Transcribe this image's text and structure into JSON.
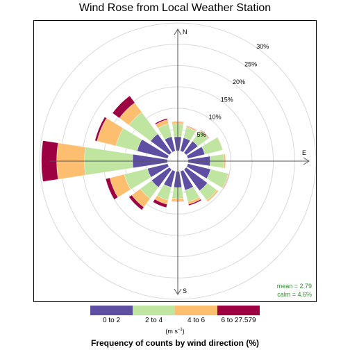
{
  "chart_data": {
    "type": "windrose",
    "title": "Wind Rose from Local Weather Station",
    "directions": [
      "N",
      "NNE",
      "NE",
      "ENE",
      "E",
      "ESE",
      "SE",
      "SSE",
      "S",
      "SSW",
      "SW",
      "WSW",
      "W",
      "WNW",
      "NW",
      "NNW"
    ],
    "compass_labels": [
      "N",
      "E",
      "S"
    ],
    "radial_ticks": [
      "5%",
      "10%",
      "15%",
      "20%",
      "25%",
      "30%"
    ],
    "radial_tick_values": [
      5,
      10,
      15,
      20,
      25,
      30
    ],
    "bins": [
      {
        "label": "0 to 2",
        "color": "#5e4fa2"
      },
      {
        "label": "2 to 4",
        "color": "#bfe5a0"
      },
      {
        "label": "4 to 6",
        "color": "#fdbf6f"
      },
      {
        "label": "6 to 27.579",
        "color": "#9e0142"
      }
    ],
    "cumulative_percent": [
      [
        3.3,
        6.3,
        6.8,
        6.9
      ],
      [
        3.2,
        5.7,
        6.0,
        6.1
      ],
      [
        3.4,
        6.4,
        6.6,
        6.7
      ],
      [
        4.1,
        8.4,
        8.5,
        8.5
      ],
      [
        5.2,
        8.4,
        8.8,
        8.8
      ],
      [
        5.5,
        9.8,
        10.0,
        10.1
      ],
      [
        6.2,
        9.0,
        9.4,
        9.4
      ],
      [
        4.6,
        7.4,
        8.0,
        8.3
      ],
      [
        3.8,
        6.4,
        7.0,
        7.1
      ],
      [
        3.9,
        7.0,
        8.0,
        8.8
      ],
      [
        5.2,
        8.5,
        11.0,
        11.8
      ],
      [
        4.9,
        10.5,
        14.0,
        15.0
      ],
      [
        8.2,
        19.5,
        26.0,
        29.6
      ],
      [
        7.4,
        12.5,
        17.1,
        17.6
      ],
      [
        5.5,
        11.8,
        14.6,
        16.6
      ],
      [
        3.5,
        6.6,
        7.6,
        7.9
      ]
    ],
    "stats": {
      "mean": "mean = 2.79",
      "calm": "calm = 4.6%"
    },
    "legend_position": "bottom"
  },
  "legend": {
    "units": "(m s",
    "units_sup": "−1",
    "units_close": ")",
    "header": "Frequency of counts by wind direction (%)"
  }
}
